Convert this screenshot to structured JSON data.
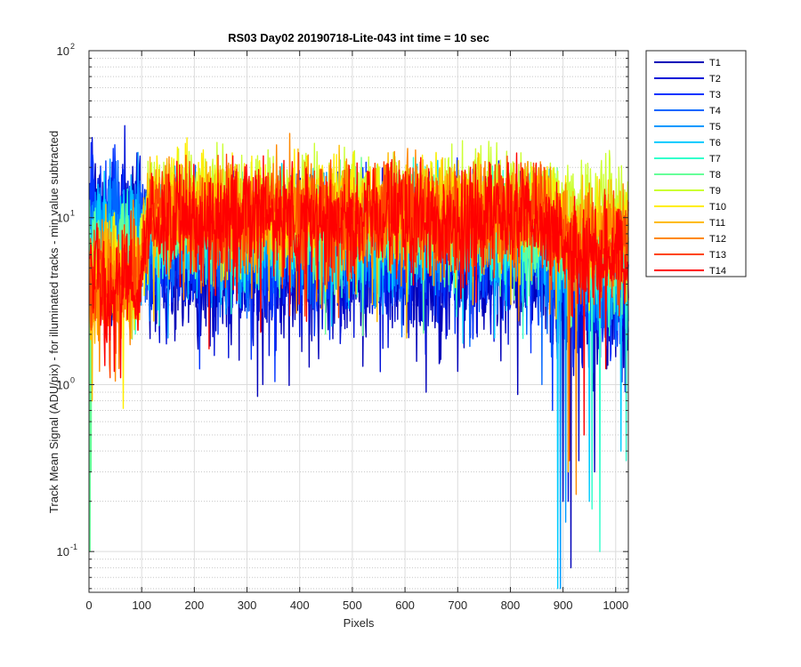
{
  "chart_data": {
    "type": "line",
    "title": "RS03 Day02 20190718-Lite-043 int time = 10 sec",
    "xlabel": "Pixels",
    "ylabel": "Track Mean Signal (ADU/pix) - for illuminated tracks - min value subtracted",
    "xlim": [
      0,
      1024
    ],
    "ylim": [
      0.057,
      100
    ],
    "yscale": "log",
    "grid": "major-and-minor",
    "legend_position": "outside-right",
    "x_ticks": [
      "0",
      "100",
      "200",
      "300",
      "400",
      "500",
      "600",
      "700",
      "800",
      "900",
      "1000"
    ],
    "y_ticks": [
      {
        "base": "10",
        "exp": "-1",
        "value": 0.1
      },
      {
        "base": "10",
        "exp": "0",
        "value": 1
      },
      {
        "base": "10",
        "exp": "1",
        "value": 10
      },
      {
        "base": "10",
        "exp": "2",
        "value": 100
      }
    ],
    "series": [
      {
        "name": "T1",
        "color": "#0000b8",
        "base": 5.0,
        "noise": 0.35,
        "edge_base": 9.0,
        "ramp_to": 3.0,
        "dips": [
          [
            320,
            0.85
          ],
          [
            330,
            1.0
          ],
          [
            285,
            1.4
          ],
          [
            640,
            0.9
          ],
          [
            700,
            1.2
          ],
          [
            915,
            0.08
          ],
          [
            900,
            0.2
          ],
          [
            960,
            0.3
          ]
        ]
      },
      {
        "name": "T2",
        "color": "#0010d8",
        "base": 5.5,
        "noise": 0.35,
        "edge_base": 10.0,
        "ramp_to": 3.5,
        "dips": [
          [
            265,
            1.45
          ],
          [
            355,
            1.6
          ],
          [
            910,
            0.2
          ],
          [
            930,
            0.35
          ]
        ]
      },
      {
        "name": "T3",
        "color": "#0033ff",
        "base": 6.5,
        "noise": 0.32,
        "edge_base": 11.0,
        "ramp_to": 4.0,
        "dips": [
          [
            245,
            2.0
          ],
          [
            880,
            0.7
          ]
        ]
      },
      {
        "name": "T4",
        "color": "#0066ff",
        "base": 7.5,
        "noise": 0.28,
        "edge_base": 10.0,
        "ramp_to": 4.5,
        "dips": [
          [
            300,
            2.5
          ],
          [
            860,
            1.0
          ]
        ]
      },
      {
        "name": "T5",
        "color": "#0099ff",
        "base": 8.0,
        "noise": 0.27,
        "edge_base": 8.0,
        "ramp_to": 5.0,
        "dips": [
          [
            895,
            0.06
          ],
          [
            905,
            0.15
          ]
        ]
      },
      {
        "name": "T6",
        "color": "#00ccff",
        "base": 8.5,
        "noise": 0.26,
        "edge_base": 7.0,
        "ramp_to": 5.0,
        "dips": [
          [
            890,
            0.06
          ],
          [
            950,
            0.2
          ],
          [
            1010,
            0.4
          ]
        ]
      },
      {
        "name": "T7",
        "color": "#33ffcc",
        "base": 9.0,
        "noise": 0.25,
        "edge_base": 6.0,
        "ramp_to": 6.0,
        "dips": [
          [
            955,
            0.18
          ],
          [
            970,
            0.1
          ],
          [
            1020,
            0.35
          ]
        ]
      },
      {
        "name": "T8",
        "color": "#66ff99",
        "base": 9.5,
        "noise": 0.25,
        "edge_base": 5.5,
        "ramp_to": 7.0,
        "dips": [
          [
            2,
            0.1
          ],
          [
            4,
            0.3
          ]
        ]
      },
      {
        "name": "T9",
        "color": "#ccff33",
        "base": 14.0,
        "noise": 0.2,
        "edge_base": 5.0,
        "ramp_to": 12.0,
        "dips": []
      },
      {
        "name": "T10",
        "color": "#ffee00",
        "base": 12.0,
        "noise": 0.22,
        "edge_base": 4.5,
        "ramp_to": 9.0,
        "dips": [
          [
            65,
            0.72
          ]
        ]
      },
      {
        "name": "T11",
        "color": "#ffbb00",
        "base": 11.0,
        "noise": 0.24,
        "edge_base": 4.5,
        "ramp_to": 8.0,
        "dips": [
          [
            603,
            1.9
          ],
          [
            910,
            0.3
          ]
        ]
      },
      {
        "name": "T12",
        "color": "#ff8800",
        "base": 11.0,
        "noise": 0.25,
        "edge_base": 4.2,
        "ramp_to": 7.0,
        "dips": [
          [
            50,
            1.05
          ],
          [
            20,
            1.2
          ],
          [
            925,
            0.22
          ]
        ]
      },
      {
        "name": "T13",
        "color": "#ff4400",
        "base": 10.0,
        "noise": 0.26,
        "edge_base": 4.0,
        "ramp_to": 6.5,
        "dips": [
          [
            40,
            1.1
          ],
          [
            912,
            0.35
          ]
        ]
      },
      {
        "name": "T14",
        "color": "#ff0000",
        "base": 10.0,
        "noise": 0.27,
        "edge_base": 4.0,
        "ramp_to": 6.0,
        "dips": [
          [
            30,
            1.3
          ],
          [
            60,
            1.1
          ],
          [
            940,
            0.5
          ]
        ]
      }
    ]
  }
}
